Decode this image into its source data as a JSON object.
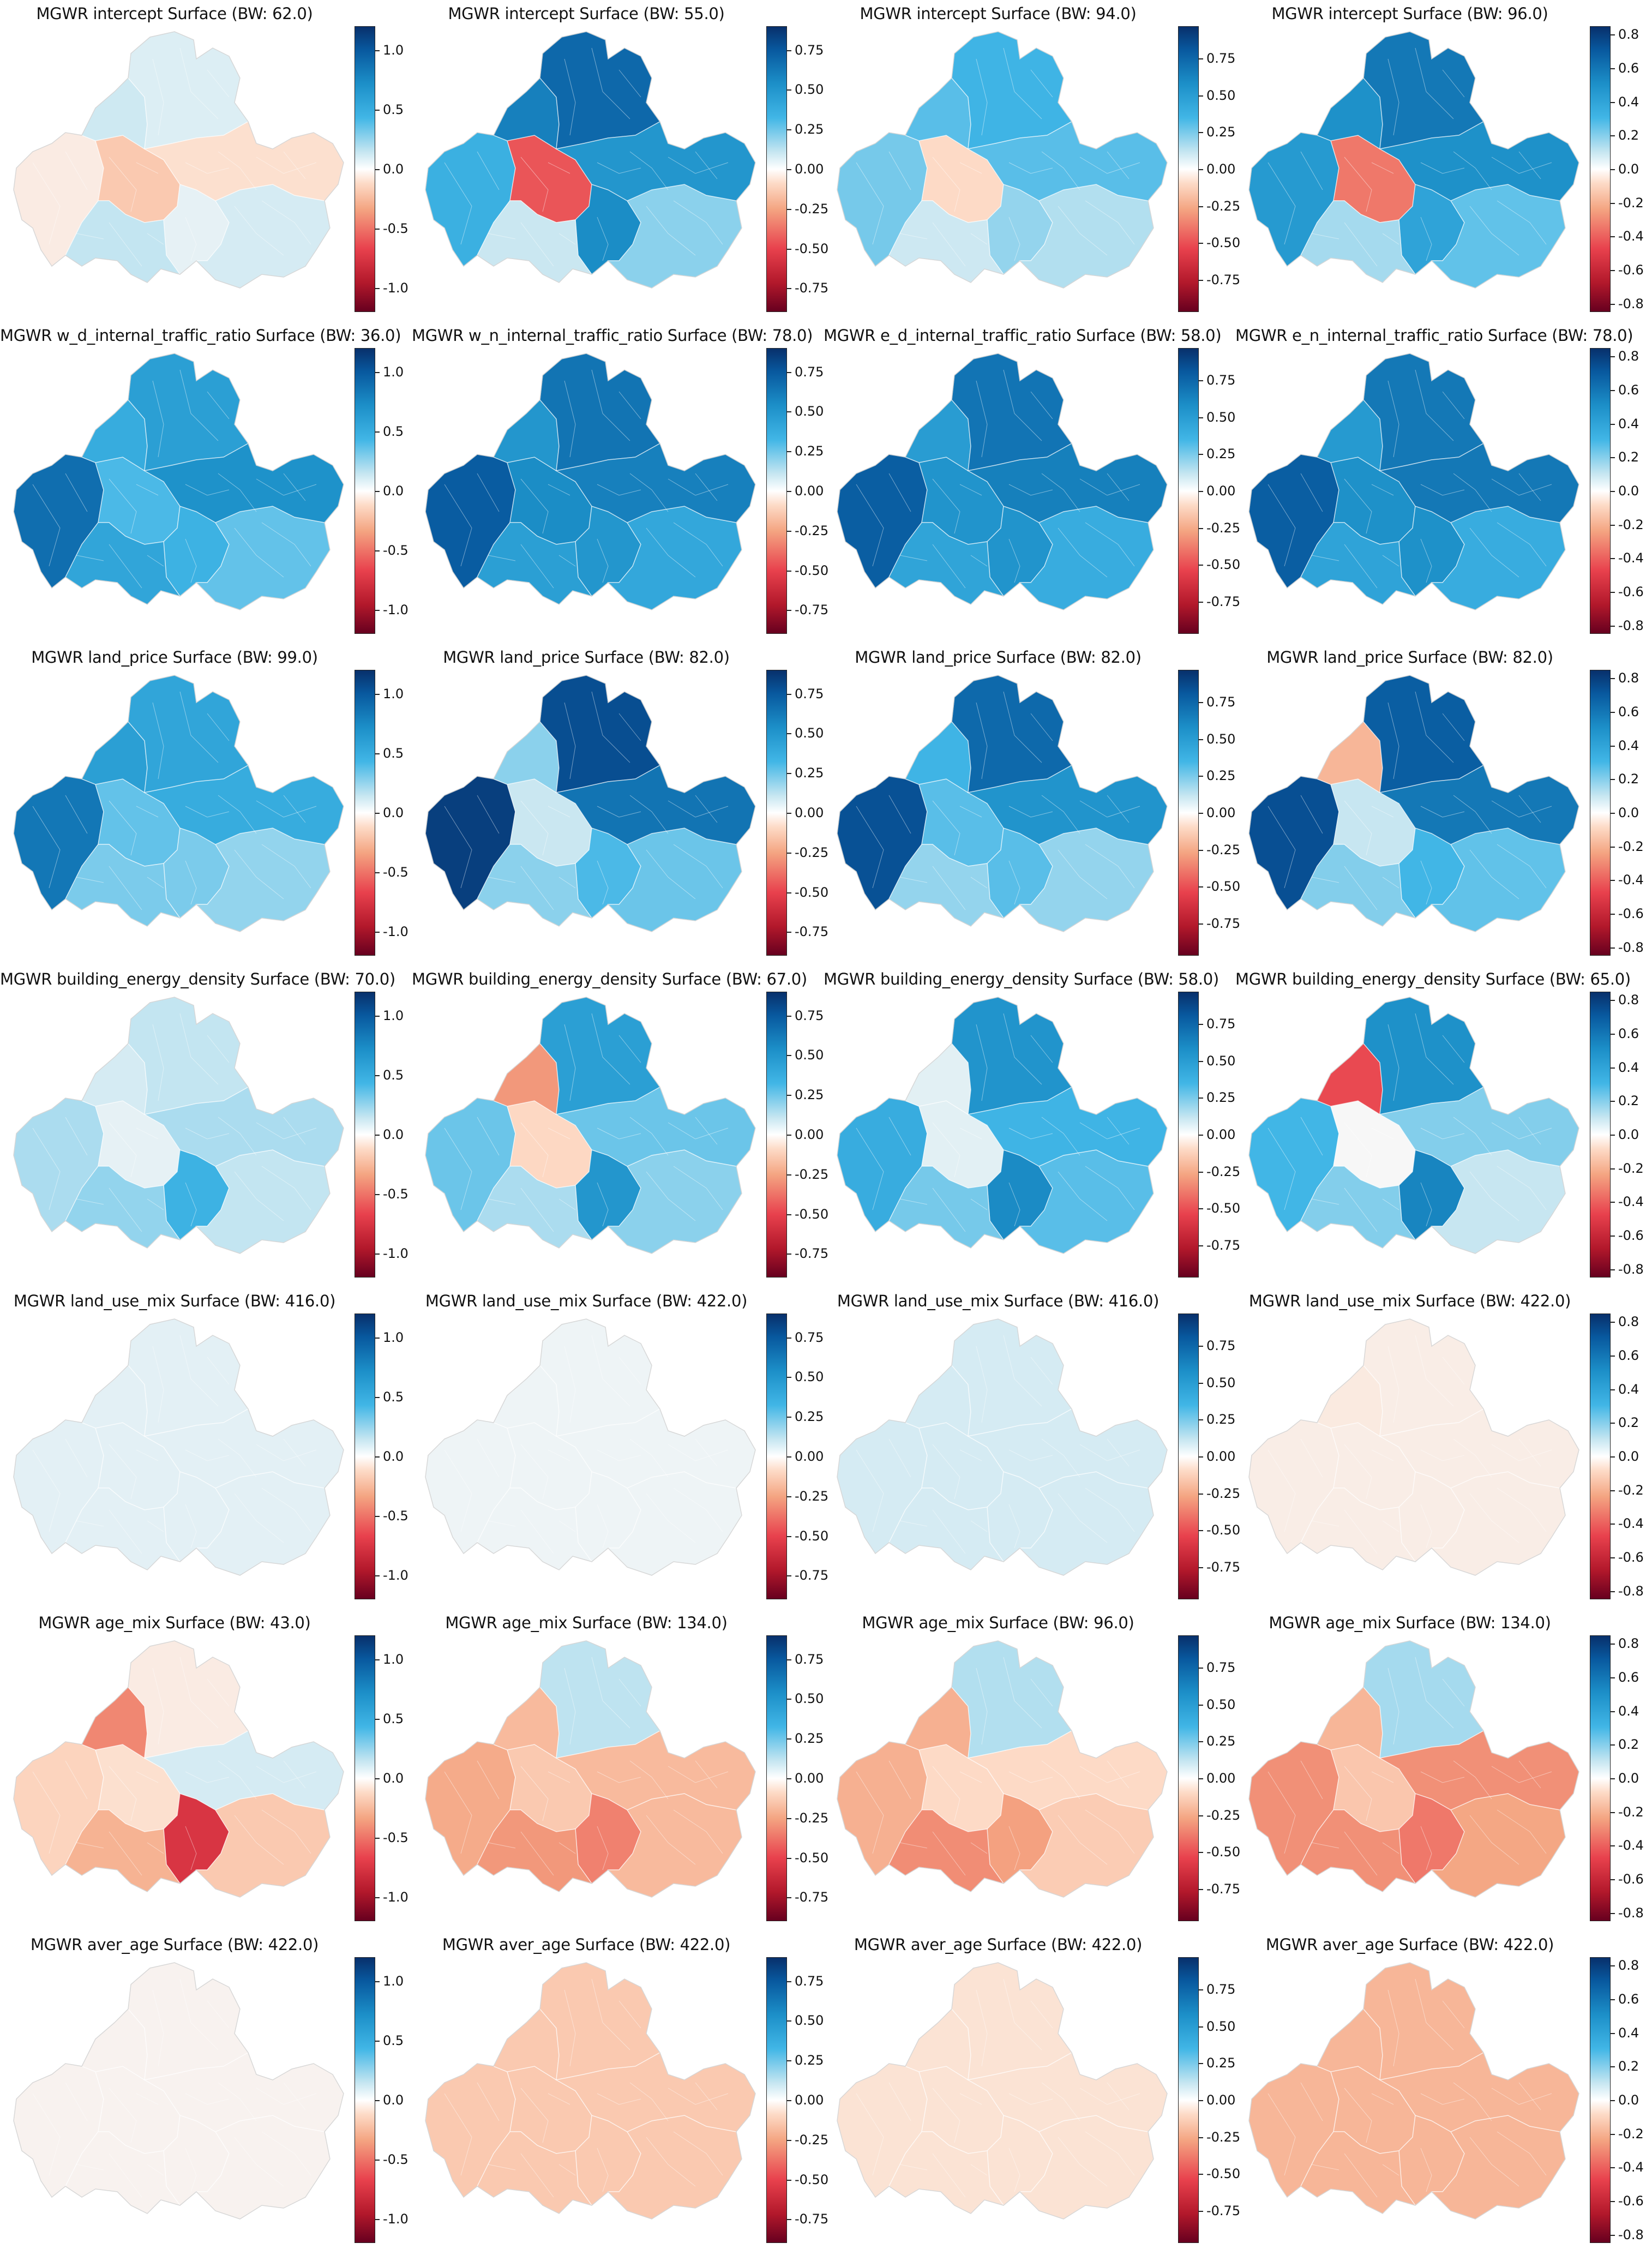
{
  "panels": [
    {
      "title": "MGWR intercept Surface (BW: 62.0)",
      "ticks": [
        "1.0",
        "0.5",
        "0.0",
        "-0.5",
        "-1.0"
      ],
      "cbar_range": [
        -1.2,
        1.2
      ],
      "levels": [
        -0.05,
        -0.2,
        0.12,
        0.08,
        0.05,
        0.15,
        0.1,
        -0.1
      ]
    },
    {
      "title": "MGWR intercept Surface (BW: 55.0)",
      "ticks": [
        "0.75",
        "0.50",
        "0.25",
        "0.00",
        "-0.25",
        "-0.50",
        "-0.75"
      ],
      "cbar_range": [
        -0.9,
        0.9
      ],
      "levels": [
        0.35,
        -0.45,
        0.6,
        0.7,
        0.55,
        0.1,
        0.2,
        0.5
      ]
    },
    {
      "title": "MGWR intercept Surface (BW: 94.0)",
      "ticks": [
        "0.75",
        "0.50",
        "0.25",
        "0.00",
        "-0.25",
        "-0.50",
        "-0.75"
      ],
      "cbar_range": [
        -0.97,
        0.97
      ],
      "levels": [
        0.25,
        -0.1,
        0.3,
        0.35,
        0.2,
        0.1,
        0.15,
        0.3
      ]
    },
    {
      "title": "MGWR intercept Surface (BW: 96.0)",
      "ticks": [
        "0.8",
        "0.6",
        "0.4",
        "0.2",
        "0.0",
        "-0.2",
        "-0.4",
        "-0.6",
        "-0.8"
      ],
      "cbar_range": [
        -0.85,
        0.85
      ],
      "levels": [
        0.45,
        -0.35,
        0.5,
        0.6,
        0.4,
        0.15,
        0.25,
        0.5
      ]
    },
    {
      "title": "MGWR w_d_internal_traffic_ratio Surface (BW: 36.0)",
      "ticks": [
        "1.0",
        "0.5",
        "0.0",
        "-0.5",
        "-1.0"
      ],
      "cbar_range": [
        -1.2,
        1.2
      ],
      "levels": [
        0.9,
        0.4,
        0.5,
        0.6,
        0.45,
        0.55,
        0.35,
        0.7
      ]
    },
    {
      "title": "MGWR w_n_internal_traffic_ratio Surface (BW: 78.0)",
      "ticks": [
        "0.75",
        "0.50",
        "0.25",
        "0.00",
        "-0.25",
        "-0.50",
        "-0.75"
      ],
      "cbar_range": [
        -0.9,
        0.9
      ],
      "levels": [
        0.75,
        0.55,
        0.5,
        0.65,
        0.5,
        0.45,
        0.4,
        0.6
      ]
    },
    {
      "title": "MGWR e_d_internal_traffic_ratio Surface (BW: 58.0)",
      "ticks": [
        "0.75",
        "0.50",
        "0.25",
        "0.00",
        "-0.25",
        "-0.50",
        "-0.75"
      ],
      "cbar_range": [
        -0.97,
        0.97
      ],
      "levels": [
        0.8,
        0.55,
        0.5,
        0.7,
        0.55,
        0.45,
        0.4,
        0.65
      ]
    },
    {
      "title": "MGWR e_n_internal_traffic_ratio Surface (BW: 78.0)",
      "ticks": [
        "0.8",
        "0.6",
        "0.4",
        "0.2",
        "0.0",
        "-0.2",
        "-0.4",
        "-0.6",
        "-0.8"
      ],
      "cbar_range": [
        -0.85,
        0.85
      ],
      "levels": [
        0.7,
        0.5,
        0.45,
        0.6,
        0.5,
        0.4,
        0.35,
        0.6
      ]
    },
    {
      "title": "MGWR land_price Surface (BW: 99.0)",
      "ticks": [
        "1.0",
        "0.5",
        "0.0",
        "-0.5",
        "-1.0"
      ],
      "cbar_range": [
        -1.2,
        1.2
      ],
      "levels": [
        0.85,
        0.35,
        0.6,
        0.55,
        0.3,
        0.3,
        0.25,
        0.5
      ]
    },
    {
      "title": "MGWR land_price Surface (BW: 82.0)",
      "ticks": [
        "0.75",
        "0.50",
        "0.25",
        "0.00",
        "-0.25",
        "-0.50",
        "-0.75"
      ],
      "cbar_range": [
        -0.9,
        0.9
      ],
      "levels": [
        0.85,
        0.1,
        0.2,
        0.8,
        0.3,
        0.2,
        0.25,
        0.65
      ]
    },
    {
      "title": "MGWR land_price Surface (BW: 82.0)",
      "ticks": [
        "0.75",
        "0.50",
        "0.25",
        "0.00",
        "-0.25",
        "-0.50",
        "-0.75"
      ],
      "cbar_range": [
        -0.97,
        0.97
      ],
      "levels": [
        0.85,
        0.3,
        0.35,
        0.75,
        0.3,
        0.2,
        0.2,
        0.55
      ]
    },
    {
      "title": "MGWR land_price Surface (BW: 82.0)",
      "ticks": [
        "0.8",
        "0.6",
        "0.4",
        "0.2",
        "0.0",
        "-0.2",
        "-0.4",
        "-0.6",
        "-0.8"
      ],
      "cbar_range": [
        -0.85,
        0.85
      ],
      "levels": [
        0.75,
        0.1,
        -0.2,
        0.7,
        0.3,
        0.2,
        0.25,
        0.6
      ]
    },
    {
      "title": "MGWR building_energy_density Surface (BW: 70.0)",
      "ticks": [
        "1.0",
        "0.5",
        "0.0",
        "-0.5",
        "-1.0"
      ],
      "cbar_range": [
        -1.2,
        1.2
      ],
      "levels": [
        0.2,
        0.05,
        0.1,
        0.15,
        0.45,
        0.25,
        0.15,
        0.2
      ]
    },
    {
      "title": "MGWR building_energy_density Surface (BW: 67.0)",
      "ticks": [
        "0.75",
        "0.50",
        "0.25",
        "0.00",
        "-0.25",
        "-0.50",
        "-0.75"
      ],
      "cbar_range": [
        -0.9,
        0.9
      ],
      "levels": [
        0.25,
        -0.1,
        -0.3,
        0.45,
        0.5,
        0.15,
        0.2,
        0.25
      ]
    },
    {
      "title": "MGWR building_energy_density Surface (BW: 58.0)",
      "ticks": [
        "0.75",
        "0.50",
        "0.25",
        "0.00",
        "-0.25",
        "-0.50",
        "-0.75"
      ],
      "cbar_range": [
        -0.97,
        0.97
      ],
      "levels": [
        0.4,
        0.05,
        0.05,
        0.55,
        0.6,
        0.25,
        0.3,
        0.35
      ]
    },
    {
      "title": "MGWR building_energy_density Surface (BW: 65.0)",
      "ticks": [
        "0.8",
        "0.6",
        "0.4",
        "0.2",
        "0.0",
        "-0.2",
        "-0.4",
        "-0.6",
        "-0.8"
      ],
      "cbar_range": [
        -0.85,
        0.85
      ],
      "levels": [
        0.3,
        0.0,
        -0.45,
        0.5,
        0.55,
        0.2,
        0.1,
        0.2
      ]
    },
    {
      "title": "MGWR land_use_mix Surface (BW: 416.0)",
      "ticks": [
        "1.0",
        "0.5",
        "0.0",
        "-0.5",
        "-1.0"
      ],
      "cbar_range": [
        -1.2,
        1.2
      ],
      "levels": [
        0.06,
        0.06,
        0.06,
        0.06,
        0.06,
        0.06,
        0.06,
        0.06
      ]
    },
    {
      "title": "MGWR land_use_mix Surface (BW: 422.0)",
      "ticks": [
        "0.75",
        "0.50",
        "0.25",
        "0.00",
        "-0.25",
        "-0.50",
        "-0.75"
      ],
      "cbar_range": [
        -0.9,
        0.9
      ],
      "levels": [
        0.02,
        0.02,
        0.02,
        0.02,
        0.02,
        0.02,
        0.02,
        0.02
      ]
    },
    {
      "title": "MGWR land_use_mix Surface (BW: 416.0)",
      "ticks": [
        "0.75",
        "0.50",
        "0.25",
        "0.00",
        "-0.25",
        "-0.50",
        "-0.75"
      ],
      "cbar_range": [
        -0.97,
        0.97
      ],
      "levels": [
        0.08,
        0.08,
        0.08,
        0.08,
        0.08,
        0.08,
        0.08,
        0.08
      ]
    },
    {
      "title": "MGWR land_use_mix Surface (BW: 422.0)",
      "ticks": [
        "0.8",
        "0.6",
        "0.4",
        "0.2",
        "0.0",
        "-0.2",
        "-0.4",
        "-0.6",
        "-0.8"
      ],
      "cbar_range": [
        -0.85,
        0.85
      ],
      "levels": [
        -0.03,
        -0.03,
        -0.04,
        -0.03,
        -0.03,
        -0.03,
        -0.03,
        -0.03
      ]
    },
    {
      "title": "MGWR age_mix Surface (BW: 43.0)",
      "ticks": [
        "1.0",
        "0.5",
        "0.0",
        "-0.5",
        "-1.0"
      ],
      "cbar_range": [
        -1.2,
        1.2
      ],
      "levels": [
        -0.15,
        -0.1,
        -0.45,
        -0.05,
        -0.75,
        -0.3,
        -0.2,
        0.1
      ]
    },
    {
      "title": "MGWR age_mix Surface (BW: 134.0)",
      "ticks": [
        "0.75",
        "0.50",
        "0.25",
        "0.00",
        "-0.25",
        "-0.50",
        "-0.75"
      ],
      "cbar_range": [
        -0.9,
        0.9
      ],
      "levels": [
        -0.25,
        -0.15,
        -0.2,
        0.12,
        -0.35,
        -0.3,
        -0.2,
        -0.2
      ]
    },
    {
      "title": "MGWR age_mix Surface (BW: 96.0)",
      "ticks": [
        "0.75",
        "0.50",
        "0.25",
        "0.00",
        "-0.25",
        "-0.50",
        "-0.75"
      ],
      "cbar_range": [
        -0.97,
        0.97
      ],
      "levels": [
        -0.25,
        -0.1,
        -0.25,
        0.15,
        -0.3,
        -0.35,
        -0.15,
        -0.1
      ]
    },
    {
      "title": "MGWR age_mix Surface (BW: 134.0)",
      "ticks": [
        "0.8",
        "0.6",
        "0.4",
        "0.2",
        "0.0",
        "-0.2",
        "-0.4",
        "-0.6",
        "-0.8"
      ],
      "cbar_range": [
        -0.85,
        0.85
      ],
      "levels": [
        -0.3,
        -0.15,
        -0.2,
        0.15,
        -0.35,
        -0.3,
        -0.25,
        -0.3
      ]
    },
    {
      "title": "MGWR aver_age Surface (BW: 422.0)",
      "ticks": [
        "1.0",
        "0.5",
        "0.0",
        "-0.5",
        "-1.0"
      ],
      "cbar_range": [
        -1.2,
        1.2
      ],
      "levels": [
        -0.02,
        -0.02,
        -0.02,
        -0.02,
        -0.02,
        -0.02,
        -0.02,
        -0.02
      ]
    },
    {
      "title": "MGWR aver_age Surface (BW: 422.0)",
      "ticks": [
        "0.75",
        "0.50",
        "0.25",
        "0.00",
        "-0.25",
        "-0.50",
        "-0.75"
      ],
      "cbar_range": [
        -0.9,
        0.9
      ],
      "levels": [
        -0.15,
        -0.15,
        -0.15,
        -0.15,
        -0.15,
        -0.15,
        -0.15,
        -0.15
      ]
    },
    {
      "title": "MGWR aver_age Surface (BW: 422.0)",
      "ticks": [
        "0.75",
        "0.50",
        "0.25",
        "0.00",
        "-0.25",
        "-0.50",
        "-0.75"
      ],
      "cbar_range": [
        -0.97,
        0.97
      ],
      "levels": [
        -0.07,
        -0.07,
        -0.07,
        -0.07,
        -0.07,
        -0.07,
        -0.07,
        -0.07
      ]
    },
    {
      "title": "MGWR aver_age Surface (BW: 422.0)",
      "ticks": [
        "0.8",
        "0.6",
        "0.4",
        "0.2",
        "0.0",
        "-0.2",
        "-0.4",
        "-0.6",
        "-0.8"
      ],
      "cbar_range": [
        -0.85,
        0.85
      ],
      "levels": [
        -0.2,
        -0.2,
        -0.2,
        -0.2,
        -0.2,
        -0.2,
        -0.2,
        -0.2
      ]
    }
  ],
  "chart_data": {
    "type": "heatmap",
    "colormap": "RdBu (red = negative, blue = positive)",
    "rows": 7,
    "cols": 4,
    "grid": false
  }
}
